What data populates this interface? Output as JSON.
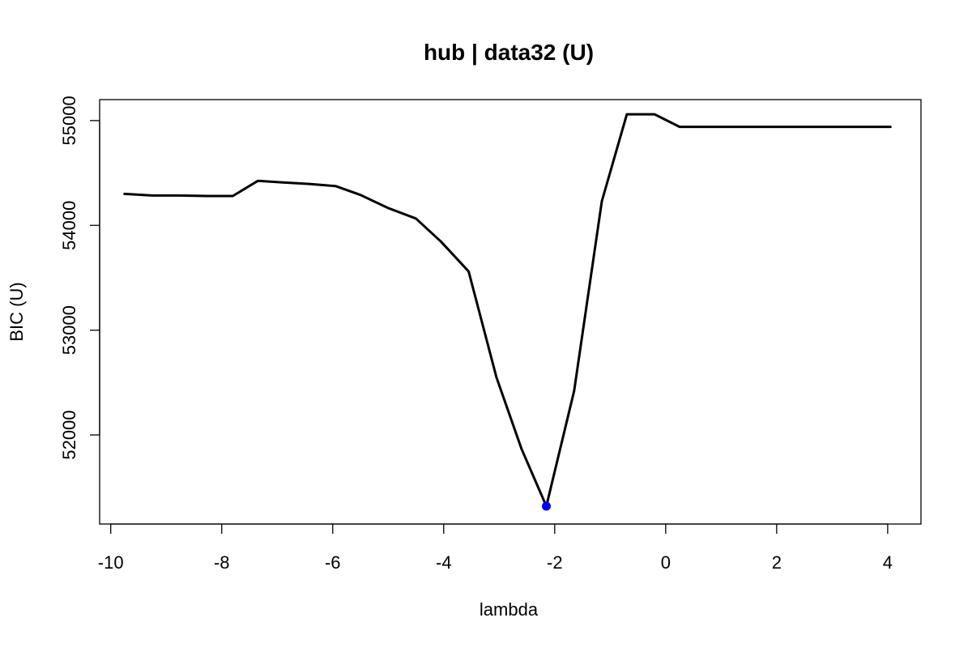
{
  "chart_data": {
    "type": "line",
    "title": "hub | data32 (U)",
    "xlabel": "lambda",
    "ylabel": "BIC (U)",
    "xlim": [
      -10.2,
      4.6
    ],
    "ylim": [
      51150,
      55200
    ],
    "x_ticks": [
      -10,
      -8,
      -6,
      -4,
      -2,
      0,
      2,
      4
    ],
    "x_tick_labels": [
      "-10",
      "-8",
      "-6",
      "-4",
      "-2",
      "0",
      "2",
      "4"
    ],
    "y_ticks": [
      52000,
      53000,
      54000,
      55000
    ],
    "y_tick_labels": [
      "52000",
      "53000",
      "54000",
      "55000"
    ],
    "grid": false,
    "series": [
      {
        "color": "#000000",
        "x": [
          -9.75,
          -9.25,
          -8.75,
          -8.25,
          -7.8,
          -7.35,
          -6.9,
          -6.4,
          -5.95,
          -5.5,
          -5.0,
          -4.5,
          -4.05,
          -3.55,
          -3.05,
          -2.6,
          -2.15,
          -1.65,
          -1.15,
          -0.7,
          -0.2,
          0.25,
          0.75,
          1.25,
          1.75,
          2.25,
          2.75,
          3.25,
          3.75,
          4.05
        ],
        "y": [
          54300,
          54285,
          54285,
          54280,
          54280,
          54425,
          54410,
          54395,
          54375,
          54290,
          54165,
          54065,
          53845,
          53560,
          52550,
          51870,
          51320,
          52420,
          54230,
          55060,
          55060,
          54940,
          54940,
          54940,
          54940,
          54940,
          54940,
          54940,
          54940,
          54940
        ]
      }
    ],
    "highlight": {
      "x": -2.15,
      "y": 51320,
      "color": "#0000ff"
    }
  }
}
